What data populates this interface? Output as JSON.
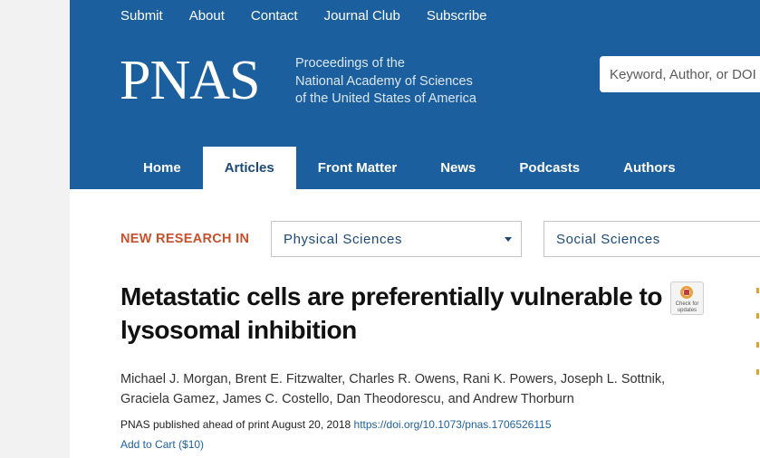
{
  "top_nav": [
    "Submit",
    "About",
    "Contact",
    "Journal Club",
    "Subscribe"
  ],
  "brand": {
    "logo_text": "PNAS",
    "subtitle_lines": [
      "Proceedings of the",
      "National Academy of Sciences",
      "of the United States of America"
    ]
  },
  "search": {
    "placeholder": "Keyword, Author, or DOI"
  },
  "main_nav": {
    "tabs": [
      "Home",
      "Articles",
      "Front Matter",
      "News",
      "Podcasts",
      "Authors"
    ],
    "active": "Articles"
  },
  "new_research": {
    "label": "NEW RESEARCH IN",
    "select1": "Physical Sciences",
    "select2": "Social Sciences"
  },
  "article": {
    "title": "Metastatic cells are preferentially vulnerable to lysosomal inhibition",
    "authors": "Michael J. Morgan, Brent E. Fitzwalter, Charles R. Owens, Rani K. Powers, Joseph L. Sottnik, Graciela Gamez, James C. Costello, Dan Theodorescu, and Andrew Thorburn",
    "pub_prefix": "PNAS published ahead of print August 20, 2018",
    "doi": "https://doi.org/10.1073/pnas.1706526115",
    "cart": "Add to Cart ($10)",
    "badge_text": "Check for updates"
  },
  "colors": {
    "header_bg": "#1b5f9f",
    "accent": "#c8502a"
  }
}
